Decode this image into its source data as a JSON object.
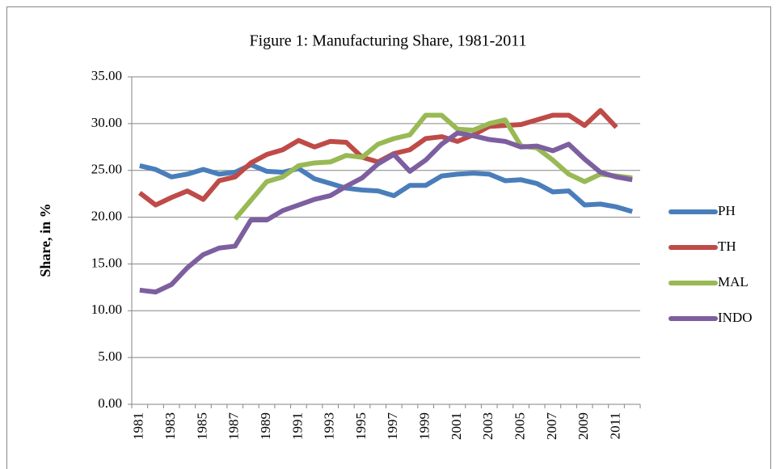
{
  "chart_data": {
    "type": "line",
    "title": "Figure 1: Manufacturing Share, 1981-2011",
    "y_label": "Share, in %",
    "categories": [
      "1981",
      null,
      "1983",
      null,
      "1985",
      null,
      "1987",
      null,
      "1989",
      null,
      "1991",
      null,
      "1993",
      null,
      "1995",
      null,
      "1997",
      null,
      "1999",
      null,
      "2001",
      null,
      "2003",
      null,
      "2005",
      null,
      "2007",
      null,
      "2009",
      null,
      "2011",
      null
    ],
    "series": [
      {
        "name": "PH",
        "color": "#4a7ebb",
        "values": [
          25.5,
          25.1,
          24.3,
          24.6,
          25.1,
          24.6,
          24.8,
          25.6,
          24.9,
          24.8,
          25.2,
          24.1,
          23.6,
          23.1,
          22.9,
          22.8,
          22.3,
          23.4,
          23.4,
          24.4,
          24.6,
          24.7,
          24.6,
          23.9,
          24.0,
          23.6,
          22.7,
          22.8,
          21.3,
          21.4,
          21.1,
          20.6
        ]
      },
      {
        "name": "TH",
        "color": "#be4b48",
        "values": [
          22.6,
          21.3,
          22.1,
          22.8,
          21.9,
          23.9,
          24.3,
          25.8,
          26.7,
          27.2,
          28.2,
          27.5,
          28.1,
          28.0,
          26.4,
          25.9,
          26.8,
          27.2,
          28.4,
          28.6,
          28.1,
          28.8,
          29.7,
          29.8,
          29.9,
          30.4,
          30.9,
          30.9,
          29.8,
          31.4,
          29.6,
          null
        ]
      },
      {
        "name": "MAL",
        "color": "#98b954",
        "values": [
          null,
          null,
          null,
          null,
          null,
          null,
          19.8,
          21.8,
          23.8,
          24.3,
          25.5,
          25.8,
          25.9,
          26.6,
          26.4,
          27.8,
          28.4,
          28.8,
          30.9,
          30.9,
          29.4,
          29.3,
          30.0,
          30.4,
          27.6,
          27.4,
          26.1,
          24.6,
          23.8,
          24.6,
          24.4,
          24.2
        ]
      },
      {
        "name": "INDO",
        "color": "#7d5fa0",
        "values": [
          12.2,
          12.0,
          12.8,
          14.6,
          16.0,
          16.7,
          16.9,
          19.7,
          19.7,
          20.7,
          21.3,
          21.9,
          22.3,
          23.3,
          24.2,
          25.7,
          26.7,
          24.9,
          26.1,
          27.8,
          29.0,
          28.7,
          28.3,
          28.1,
          27.5,
          27.6,
          27.1,
          27.8,
          26.2,
          24.8,
          24.3,
          24.0
        ]
      }
    ],
    "ylim": [
      0,
      35
    ],
    "yticks": [
      {
        "value": 0,
        "label": "0.00"
      },
      {
        "value": 5,
        "label": "5.00"
      },
      {
        "value": 10,
        "label": "10.00"
      },
      {
        "value": 15,
        "label": "15.00"
      },
      {
        "value": 20,
        "label": "20.00"
      },
      {
        "value": 25,
        "label": "25.00"
      },
      {
        "value": 30,
        "label": "30.00"
      },
      {
        "value": 35,
        "label": "35.00"
      }
    ],
    "grid": true,
    "legend": "right"
  }
}
